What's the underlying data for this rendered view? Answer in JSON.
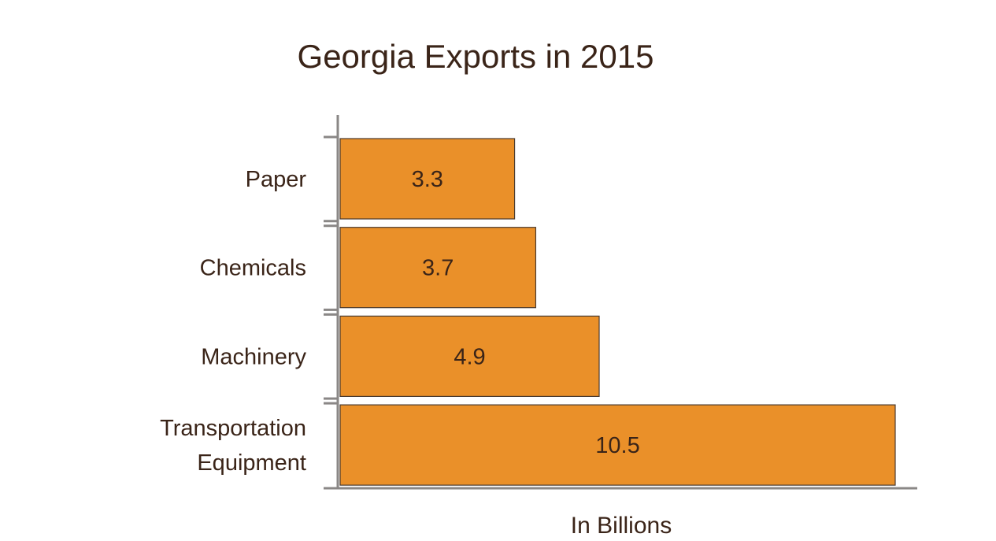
{
  "chart_data": {
    "type": "bar",
    "orientation": "horizontal",
    "title": "Georgia Exports in 2015",
    "xlabel": "In Billions",
    "ylabel": "",
    "categories": [
      [
        "Paper"
      ],
      [
        "Chemicals"
      ],
      [
        "Machinery"
      ],
      [
        "Transportation",
        "Equipment"
      ]
    ],
    "values": [
      3.3,
      3.7,
      4.9,
      10.5
    ],
    "value_labels": [
      "3.3",
      "3.7",
      "4.9",
      "10.5"
    ],
    "xlim": [
      0,
      10.5
    ],
    "grid": false,
    "bar_color": "#ea9029"
  }
}
